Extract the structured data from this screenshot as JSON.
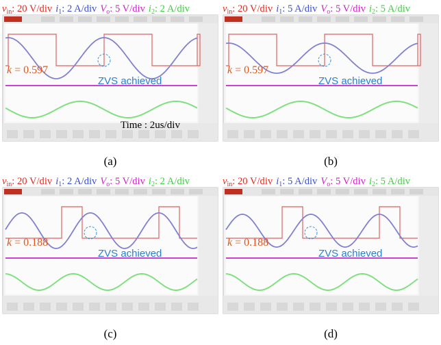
{
  "panels": [
    {
      "channels": [
        {
          "symbol": "v",
          "sub": "in",
          "scale": ": 20 V/div"
        },
        {
          "symbol": "i",
          "sub": "1",
          "scale": ": 2 A/div"
        },
        {
          "symbol": "V",
          "sub": "o",
          "scale": ": 5 V/div"
        },
        {
          "symbol": "i",
          "sub": "2",
          "scale": ": 2 A/div"
        }
      ],
      "k": {
        "symbol": "k",
        "value": "= 0.597"
      },
      "zvs": "ZVS achieved",
      "time": "Time : 2us/div",
      "caption": "(a)"
    },
    {
      "channels": [
        {
          "symbol": "v",
          "sub": "in",
          "scale": ": 20 V/div"
        },
        {
          "symbol": "i",
          "sub": "1",
          "scale": ": 5 A/div"
        },
        {
          "symbol": "V",
          "sub": "o",
          "scale": ": 5 V/div"
        },
        {
          "symbol": "i",
          "sub": "2",
          "scale": ": 5 A/div"
        }
      ],
      "k": {
        "symbol": "k",
        "value": "= 0.597"
      },
      "zvs": "ZVS achieved",
      "caption": "(b)"
    },
    {
      "channels": [
        {
          "symbol": "v",
          "sub": "in",
          "scale": ": 20 V/div"
        },
        {
          "symbol": "i",
          "sub": "1",
          "scale": ": 2 A/div"
        },
        {
          "symbol": "V",
          "sub": "o",
          "scale": ": 5 V/div"
        },
        {
          "symbol": "i",
          "sub": "2",
          "scale": ": 2 A/div"
        }
      ],
      "k": {
        "symbol": "k",
        "value": "= 0.188"
      },
      "zvs": "ZVS achieved",
      "caption": "(c)"
    },
    {
      "channels": [
        {
          "symbol": "v",
          "sub": "in",
          "scale": ": 20 V/div"
        },
        {
          "symbol": "i",
          "sub": "1",
          "scale": ": 5 A/div"
        },
        {
          "symbol": "V",
          "sub": "o",
          "scale": ": 5 V/div"
        },
        {
          "symbol": "i",
          "sub": "2",
          "scale": ": 5 A/div"
        }
      ],
      "k": {
        "symbol": "k",
        "value": "= 0.188"
      },
      "zvs": "ZVS achieved",
      "caption": "(d)"
    }
  ]
}
